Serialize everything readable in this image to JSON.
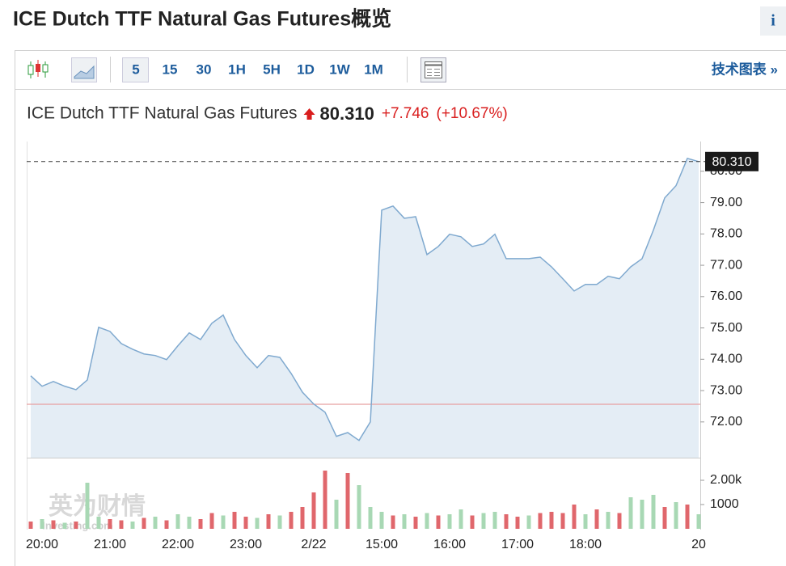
{
  "header": {
    "title": "ICE Dutch TTF Natural Gas Futures概览",
    "info_icon": "i"
  },
  "toolbar": {
    "intervals": [
      "5",
      "15",
      "30",
      "1H",
      "5H",
      "1D",
      "1W",
      "1M"
    ],
    "selected_index": 0,
    "link": "技术图表 »"
  },
  "quote": {
    "name": "ICE Dutch TTF Natural Gas Futures",
    "price": "80.310",
    "change": "+7.746",
    "change_pct": "(+10.67%)"
  },
  "watermark": {
    "brand": "英为财情",
    "site": "Investing.com"
  },
  "chart_data": [
    {
      "type": "line",
      "color": "#7fa9cf",
      "area_color": "#e4edf5",
      "categories": [
        null,
        "20:00",
        null,
        null,
        null,
        null,
        null,
        "21:00",
        null,
        null,
        null,
        null,
        null,
        "22:00",
        null,
        null,
        null,
        null,
        null,
        "23:00",
        null,
        null,
        null,
        null,
        null,
        "2/22",
        null,
        null,
        null,
        null,
        null,
        "15:00",
        null,
        null,
        null,
        null,
        null,
        "16:00",
        null,
        null,
        null,
        null,
        null,
        "17:00",
        null,
        null,
        null,
        null,
        null,
        "18:00",
        null,
        null,
        null,
        null,
        null,
        null,
        null,
        null,
        null,
        "20"
      ],
      "values": [
        73.47,
        73.14,
        73.29,
        73.14,
        73.03,
        73.34,
        75.02,
        74.89,
        74.5,
        74.32,
        74.17,
        74.12,
        73.99,
        74.43,
        74.84,
        74.63,
        75.15,
        75.41,
        74.63,
        74.12,
        73.73,
        74.12,
        74.06,
        73.55,
        72.95,
        72.57,
        72.31,
        71.54,
        71.66,
        71.41,
        72.0,
        78.76,
        78.89,
        78.5,
        78.55,
        77.34,
        77.6,
        77.99,
        77.91,
        77.6,
        77.68,
        77.99,
        77.21,
        77.21,
        77.21,
        77.26,
        76.95,
        76.57,
        76.18,
        76.39,
        76.39,
        76.65,
        76.57,
        76.95,
        77.21,
        78.12,
        79.15,
        79.54,
        80.41,
        80.31
      ],
      "reference_line": 72.564,
      "reference_color": "#e8a0a0",
      "ylim": [
        70.86,
        80.95
      ],
      "yticks": [
        {
          "value": 72,
          "label": "72.00"
        },
        {
          "value": 73,
          "label": "73.00"
        },
        {
          "value": 74,
          "label": "74.00"
        },
        {
          "value": 75,
          "label": "75.00"
        },
        {
          "value": 76,
          "label": "76.00"
        },
        {
          "value": 77,
          "label": "77.00"
        },
        {
          "value": 78,
          "label": "78.00"
        },
        {
          "value": 79,
          "label": "79.00"
        },
        {
          "value": 80,
          "label": "80.00"
        }
      ]
    },
    {
      "type": "bar",
      "series": [
        {
          "color": "#a8d8b4",
          "values": [
            null,
            400,
            null,
            250,
            null,
            1900,
            500,
            null,
            null,
            300,
            null,
            500,
            null,
            600,
            500,
            null,
            null,
            550,
            null,
            null,
            450,
            null,
            550,
            null,
            null,
            null,
            null,
            1200,
            null,
            1800,
            900,
            700,
            null,
            600,
            null,
            650,
            null,
            600,
            800,
            null,
            650,
            700,
            null,
            null,
            550,
            null,
            null,
            null,
            null,
            600,
            null,
            700,
            null,
            1300,
            1200,
            1400,
            null,
            1100,
            null,
            600
          ]
        },
        {
          "color": "#e0676c",
          "values": [
            300,
            null,
            350,
            null,
            300,
            null,
            null,
            400,
            350,
            null,
            450,
            null,
            350,
            null,
            null,
            400,
            650,
            null,
            700,
            500,
            null,
            600,
            null,
            700,
            900,
            1500,
            2400,
            null,
            2300,
            null,
            null,
            null,
            550,
            null,
            500,
            null,
            550,
            null,
            null,
            550,
            null,
            null,
            600,
            500,
            null,
            650,
            700,
            650,
            1000,
            null,
            800,
            null,
            650,
            null,
            null,
            null,
            900,
            null,
            1000,
            null
          ]
        }
      ],
      "ylim": [
        0,
        2700
      ],
      "yticks": [
        {
          "value": 2000,
          "label": "2.00k"
        },
        1000
      ]
    }
  ]
}
